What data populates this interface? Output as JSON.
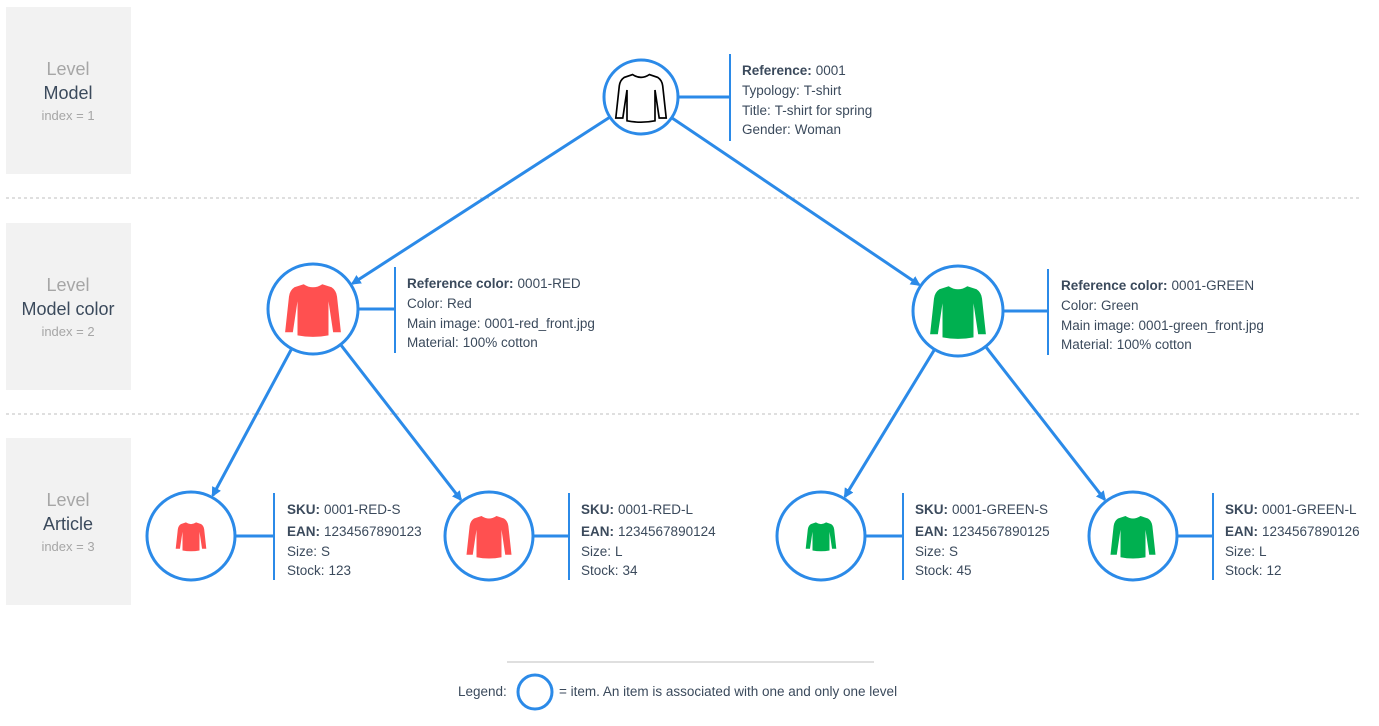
{
  "colors": {
    "accent": "#2b8ae8",
    "red": "#ff5050",
    "green": "#00b050",
    "outline": "#000000",
    "level_bg": "#f2f2f2"
  },
  "levels": [
    {
      "word": "Level",
      "name": "Model",
      "index": "index = 1"
    },
    {
      "word": "Level",
      "name": "Model color",
      "index": "index = 2"
    },
    {
      "word": "Level",
      "name": "Article",
      "index": "index = 3"
    }
  ],
  "nodes": [
    {
      "id": "model",
      "icon": "shirt-outline-icon",
      "color": "outline",
      "lines": [
        {
          "key": "Reference:",
          "value": "0001",
          "bold": true
        },
        {
          "key": "Typology:",
          "value": "T-shirt",
          "bold": false
        },
        {
          "key": "Title:",
          "value": "T-shirt for spring",
          "bold": false
        },
        {
          "key": "Gender:",
          "value": "Woman",
          "bold": false
        }
      ]
    },
    {
      "id": "color-red",
      "icon": "shirt-red-icon",
      "color": "red",
      "lines": [
        {
          "key": "Reference color:",
          "value": "0001-RED",
          "bold": true
        },
        {
          "key": "Color:",
          "value": "Red",
          "bold": false
        },
        {
          "key": "Main image:",
          "value": "0001-red_front.jpg",
          "bold": false
        },
        {
          "key": "Material:",
          "value": "100% cotton",
          "bold": false
        }
      ]
    },
    {
      "id": "color-green",
      "icon": "shirt-green-icon",
      "color": "green",
      "lines": [
        {
          "key": "Reference color:",
          "value": "0001-GREEN",
          "bold": true
        },
        {
          "key": "Color:",
          "value": "Green",
          "bold": false
        },
        {
          "key": "Main image:",
          "value": "0001-green_front.jpg",
          "bold": false
        },
        {
          "key": "Material:",
          "value": "100% cotton",
          "bold": false
        }
      ]
    },
    {
      "id": "article-red-s",
      "icon": "shirt-red-icon",
      "color": "red",
      "lines": [
        {
          "key": "SKU:",
          "value": "0001-RED-S",
          "bold": true
        },
        {
          "key": "EAN:",
          "value": "1234567890123",
          "bold": true
        },
        {
          "key": "Size:",
          "value": "S",
          "bold": false
        },
        {
          "key": "Stock:",
          "value": "123",
          "bold": false
        }
      ]
    },
    {
      "id": "article-red-l",
      "icon": "shirt-red-icon",
      "color": "red",
      "lines": [
        {
          "key": "SKU:",
          "value": "0001-RED-L",
          "bold": true
        },
        {
          "key": "EAN:",
          "value": "1234567890124",
          "bold": true
        },
        {
          "key": "Size:",
          "value": "L",
          "bold": false
        },
        {
          "key": "Stock:",
          "value": "34",
          "bold": false
        }
      ]
    },
    {
      "id": "article-green-s",
      "icon": "shirt-green-icon",
      "color": "green",
      "lines": [
        {
          "key": "SKU:",
          "value": "0001-GREEN-S",
          "bold": true
        },
        {
          "key": "EAN:",
          "value": "1234567890125",
          "bold": true
        },
        {
          "key": "Size:",
          "value": "S",
          "bold": false
        },
        {
          "key": "Stock:",
          "value": "45",
          "bold": false
        }
      ]
    },
    {
      "id": "article-green-l",
      "icon": "shirt-green-icon",
      "color": "green",
      "lines": [
        {
          "key": "SKU:",
          "value": "0001-GREEN-L",
          "bold": true
        },
        {
          "key": "EAN:",
          "value": "1234567890126",
          "bold": true
        },
        {
          "key": "Size:",
          "value": "L",
          "bold": false
        },
        {
          "key": "Stock:",
          "value": "12",
          "bold": false
        }
      ]
    }
  ],
  "edges": [
    [
      "model",
      "color-red"
    ],
    [
      "model",
      "color-green"
    ],
    [
      "color-red",
      "article-red-s"
    ],
    [
      "color-red",
      "article-red-l"
    ],
    [
      "color-green",
      "article-green-s"
    ],
    [
      "color-green",
      "article-green-l"
    ]
  ],
  "legend": {
    "label": "Legend:",
    "text": "= item. An item is associated with one and only one level"
  }
}
